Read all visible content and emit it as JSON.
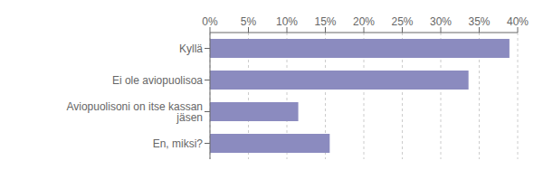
{
  "chart_data": {
    "type": "bar",
    "orientation": "horizontal",
    "categories": [
      "Kyllä",
      "Ei ole aviopuolisoa",
      "Aviopuolisoni on itse kassan jäsen",
      "En, miksi?"
    ],
    "values": [
      38.93,
      33.61,
      11.48,
      15.57
    ],
    "color": "#8b8bbf",
    "xlim": [
      0,
      40
    ],
    "xticks": [
      {
        "value": 0,
        "label": "0%"
      },
      {
        "value": 5,
        "label": "5%"
      },
      {
        "value": 10,
        "label": "10%"
      },
      {
        "value": 15,
        "label": "15%"
      },
      {
        "value": 20,
        "label": "20%"
      },
      {
        "value": 25,
        "label": "25%"
      },
      {
        "value": 30,
        "label": "30%"
      },
      {
        "value": 35,
        "label": "35%"
      },
      {
        "value": 40,
        "label": "40%"
      }
    ],
    "grid": true
  }
}
